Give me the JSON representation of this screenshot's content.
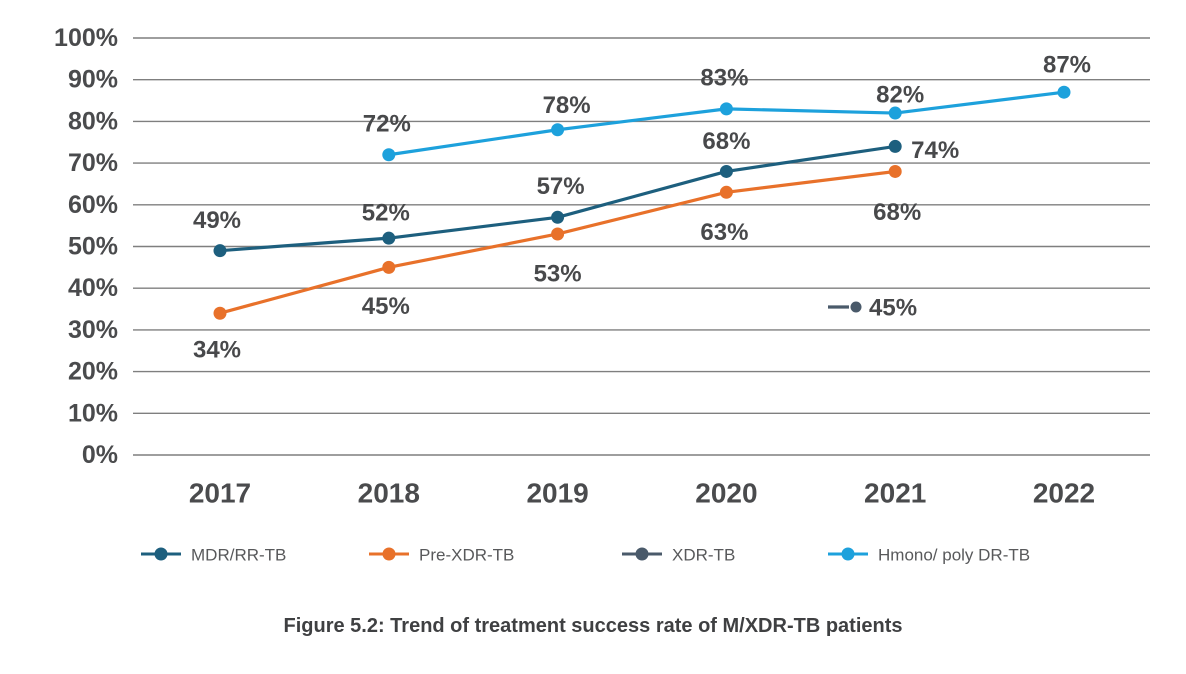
{
  "figure": {
    "caption": "Figure 5.2: Trend of treatment success rate of M/XDR-TB patients"
  },
  "colors": {
    "grid": "#7f7f7f",
    "axis_text": "#4a4b4d",
    "data_label_text": "#48494b",
    "legend_text": "#58595b",
    "caption_text": "#3f4042",
    "background": "#ffffff"
  },
  "chart_data": {
    "type": "line",
    "title": "Figure 5.2: Trend of treatment success rate of M/XDR-TB patients",
    "categories": [
      "2017",
      "2018",
      "2019",
      "2020",
      "2021",
      "2022"
    ],
    "y_axis": {
      "min": 0,
      "max": 100,
      "step": 10,
      "tick_suffix": "%",
      "tick_labels": [
        "0%",
        "10%",
        "20%",
        "30%",
        "40%",
        "50%",
        "60%",
        "70%",
        "80%",
        "90%",
        "100%"
      ]
    },
    "grid": "horizontal",
    "legend_position": "bottom",
    "series": [
      {
        "name": "MDR/RR-TB",
        "color": "#1d5f7e",
        "points": [
          {
            "x": "2017",
            "y": 49,
            "label": "49%"
          },
          {
            "x": "2018",
            "y": 52,
            "label": "52%"
          },
          {
            "x": "2019",
            "y": 57,
            "label": "57%"
          },
          {
            "x": "2020",
            "y": 68,
            "label": "68%"
          },
          {
            "x": "2021",
            "y": 74,
            "label": "74%"
          }
        ]
      },
      {
        "name": "Pre-XDR-TB",
        "color": "#e8712a",
        "points": [
          {
            "x": "2017",
            "y": 34,
            "label": "34%"
          },
          {
            "x": "2018",
            "y": 45,
            "label": "45%"
          },
          {
            "x": "2019",
            "y": 53,
            "label": "53%"
          },
          {
            "x": "2020",
            "y": 63,
            "label": "63%"
          },
          {
            "x": "2021",
            "y": 68,
            "label": "68%"
          }
        ]
      },
      {
        "name": "XDR-TB",
        "color": "#4a5a6a",
        "display_style": "key_label_only",
        "points": [
          {
            "x": "2021",
            "y": 45,
            "label": "45%"
          }
        ]
      },
      {
        "name": "Hmono/ poly DR-TB",
        "color": "#1da1dc",
        "points": [
          {
            "x": "2018",
            "y": 72,
            "label": "72%"
          },
          {
            "x": "2019",
            "y": 78,
            "label": "78%"
          },
          {
            "x": "2020",
            "y": 83,
            "label": "83%"
          },
          {
            "x": "2021",
            "y": 82,
            "label": "82%"
          },
          {
            "x": "2022",
            "y": 87,
            "label": "87%"
          }
        ]
      }
    ]
  }
}
